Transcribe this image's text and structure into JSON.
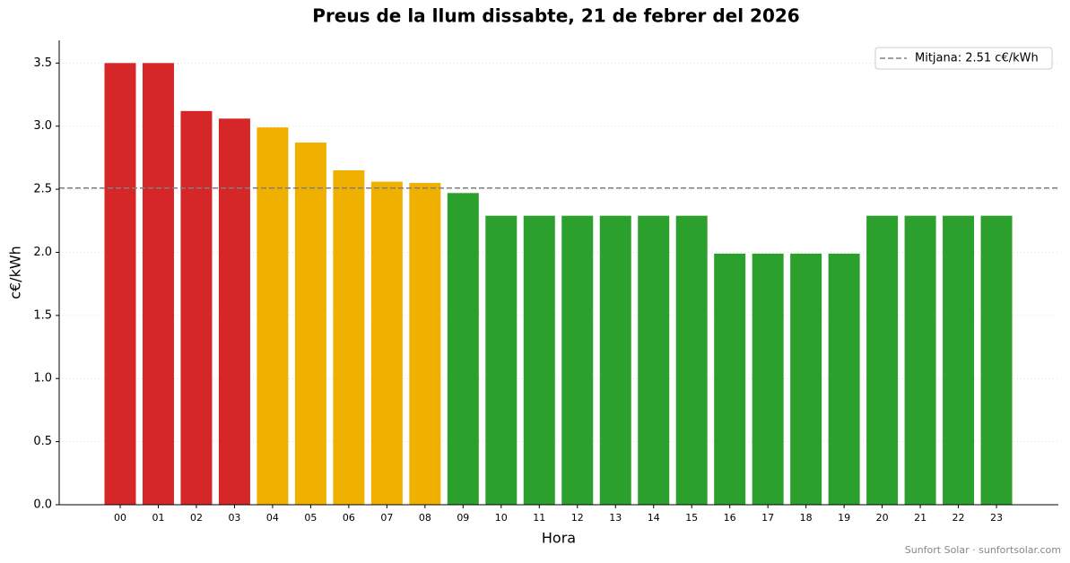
{
  "chart_data": {
    "type": "bar",
    "title": "Preus de la llum dissabte, 21 de febrer del 2026",
    "xlabel": "Hora",
    "ylabel": "c€/kWh",
    "categories": [
      "00",
      "01",
      "02",
      "03",
      "04",
      "05",
      "06",
      "07",
      "08",
      "09",
      "10",
      "11",
      "12",
      "13",
      "14",
      "15",
      "16",
      "17",
      "18",
      "19",
      "20",
      "21",
      "22",
      "23"
    ],
    "values": [
      3.5,
      3.5,
      3.12,
      3.06,
      2.99,
      2.87,
      2.65,
      2.56,
      2.55,
      2.47,
      2.29,
      2.29,
      2.29,
      2.29,
      2.29,
      2.29,
      1.99,
      1.99,
      1.99,
      1.99,
      2.29,
      2.29,
      2.29,
      2.29
    ],
    "colors": [
      "#d62728",
      "#d62728",
      "#d62728",
      "#d62728",
      "#f0b000",
      "#f0b000",
      "#f0b000",
      "#f0b000",
      "#f0b000",
      "#2ca02c",
      "#2ca02c",
      "#2ca02c",
      "#2ca02c",
      "#2ca02c",
      "#2ca02c",
      "#2ca02c",
      "#2ca02c",
      "#2ca02c",
      "#2ca02c",
      "#2ca02c",
      "#2ca02c",
      "#2ca02c",
      "#2ca02c",
      "#2ca02c"
    ],
    "mean": {
      "value": 2.51,
      "label": "Mitjana: 2.51 c€/kWh",
      "color": "#808080"
    },
    "legend": "upper right",
    "ylim": [
      0,
      3.68
    ],
    "yticks": [
      {
        "value": 0,
        "label": "0.0"
      },
      0.5,
      {
        "value": 1,
        "label": "1.0"
      },
      1.5,
      {
        "value": 2,
        "label": "2.0"
      },
      2.5,
      {
        "value": 3,
        "label": "3.0"
      },
      3.5
    ],
    "grid": true,
    "footer": "Sunfort Solar · sunfortsolar.com"
  }
}
